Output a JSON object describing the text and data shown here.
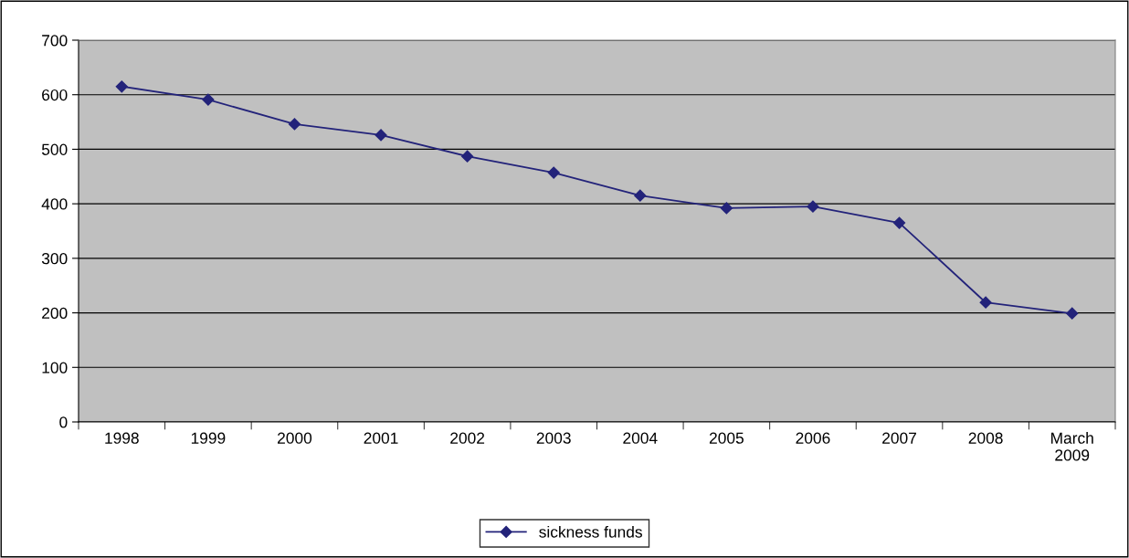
{
  "chart_data": {
    "type": "line",
    "categories": [
      "1998",
      "1999",
      "2000",
      "2001",
      "2002",
      "2003",
      "2004",
      "2005",
      "2006",
      "2007",
      "2008",
      "March\n2009"
    ],
    "series": [
      {
        "name": "sickness funds",
        "color": "#23237a",
        "values": [
          615,
          591,
          546,
          526,
          487,
          457,
          415,
          392,
          395,
          365,
          219,
          199
        ]
      }
    ],
    "ylim": [
      0,
      700
    ],
    "yticks": [
      0,
      100,
      200,
      300,
      400,
      500,
      600,
      700
    ],
    "grid": "y",
    "legend": "bottom",
    "marker": "diamond",
    "line_style": "solid"
  }
}
